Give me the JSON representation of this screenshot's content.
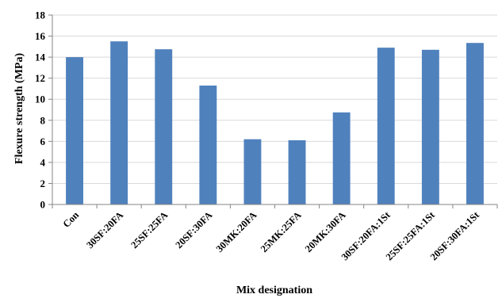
{
  "chart_data": {
    "type": "bar",
    "title": "",
    "xlabel": "Mix designation",
    "ylabel": "Flexure strength (MPa)",
    "ylim": [
      0,
      18
    ],
    "yticks": [
      0,
      2,
      4,
      6,
      8,
      10,
      12,
      14,
      16,
      18
    ],
    "grid": true,
    "legend": "none",
    "bar_color": "#4F81BD",
    "grid_color": "#D9D9D9",
    "axis_color": "#868686",
    "categories": [
      "Con",
      "30SF:20FA",
      "25SF:25FA",
      "20SF:30FA",
      "30MK:20FA",
      "25MK:25FA",
      "20MK:30FA",
      "30SF:20FA:1St",
      "25SF:25FA:1St",
      "20SF:30FA:1St"
    ],
    "values": [
      14.0,
      15.5,
      14.75,
      11.3,
      6.2,
      6.1,
      8.75,
      14.9,
      14.7,
      15.35
    ]
  }
}
